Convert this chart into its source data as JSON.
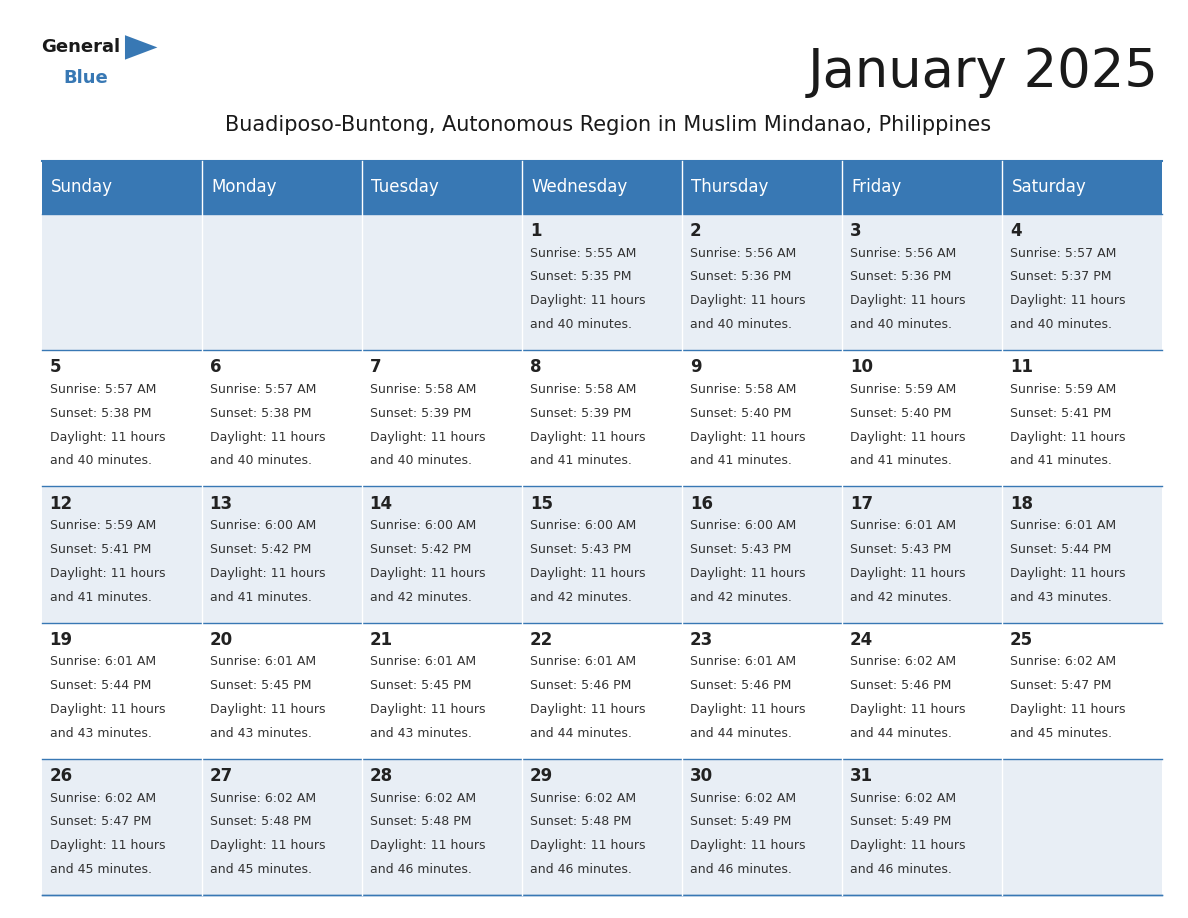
{
  "title": "January 2025",
  "subtitle": "Buadiposo-Buntong, Autonomous Region in Muslim Mindanao, Philippines",
  "days_of_week": [
    "Sunday",
    "Monday",
    "Tuesday",
    "Wednesday",
    "Thursday",
    "Friday",
    "Saturday"
  ],
  "header_bg": "#3878b4",
  "header_text": "#ffffff",
  "cell_bg_light": "#e8eef5",
  "cell_bg_white": "#ffffff",
  "border_color": "#3878b4",
  "day_num_color": "#222222",
  "info_text_color": "#333333",
  "calendar": [
    [
      {
        "day": null,
        "sunrise": null,
        "sunset": null,
        "daylight": null
      },
      {
        "day": null,
        "sunrise": null,
        "sunset": null,
        "daylight": null
      },
      {
        "day": null,
        "sunrise": null,
        "sunset": null,
        "daylight": null
      },
      {
        "day": 1,
        "sunrise": "5:55 AM",
        "sunset": "5:35 PM",
        "daylight": "11 hours and 40 minutes."
      },
      {
        "day": 2,
        "sunrise": "5:56 AM",
        "sunset": "5:36 PM",
        "daylight": "11 hours and 40 minutes."
      },
      {
        "day": 3,
        "sunrise": "5:56 AM",
        "sunset": "5:36 PM",
        "daylight": "11 hours and 40 minutes."
      },
      {
        "day": 4,
        "sunrise": "5:57 AM",
        "sunset": "5:37 PM",
        "daylight": "11 hours and 40 minutes."
      }
    ],
    [
      {
        "day": 5,
        "sunrise": "5:57 AM",
        "sunset": "5:38 PM",
        "daylight": "11 hours and 40 minutes."
      },
      {
        "day": 6,
        "sunrise": "5:57 AM",
        "sunset": "5:38 PM",
        "daylight": "11 hours and 40 minutes."
      },
      {
        "day": 7,
        "sunrise": "5:58 AM",
        "sunset": "5:39 PM",
        "daylight": "11 hours and 40 minutes."
      },
      {
        "day": 8,
        "sunrise": "5:58 AM",
        "sunset": "5:39 PM",
        "daylight": "11 hours and 41 minutes."
      },
      {
        "day": 9,
        "sunrise": "5:58 AM",
        "sunset": "5:40 PM",
        "daylight": "11 hours and 41 minutes."
      },
      {
        "day": 10,
        "sunrise": "5:59 AM",
        "sunset": "5:40 PM",
        "daylight": "11 hours and 41 minutes."
      },
      {
        "day": 11,
        "sunrise": "5:59 AM",
        "sunset": "5:41 PM",
        "daylight": "11 hours and 41 minutes."
      }
    ],
    [
      {
        "day": 12,
        "sunrise": "5:59 AM",
        "sunset": "5:41 PM",
        "daylight": "11 hours and 41 minutes."
      },
      {
        "day": 13,
        "sunrise": "6:00 AM",
        "sunset": "5:42 PM",
        "daylight": "11 hours and 41 minutes."
      },
      {
        "day": 14,
        "sunrise": "6:00 AM",
        "sunset": "5:42 PM",
        "daylight": "11 hours and 42 minutes."
      },
      {
        "day": 15,
        "sunrise": "6:00 AM",
        "sunset": "5:43 PM",
        "daylight": "11 hours and 42 minutes."
      },
      {
        "day": 16,
        "sunrise": "6:00 AM",
        "sunset": "5:43 PM",
        "daylight": "11 hours and 42 minutes."
      },
      {
        "day": 17,
        "sunrise": "6:01 AM",
        "sunset": "5:43 PM",
        "daylight": "11 hours and 42 minutes."
      },
      {
        "day": 18,
        "sunrise": "6:01 AM",
        "sunset": "5:44 PM",
        "daylight": "11 hours and 43 minutes."
      }
    ],
    [
      {
        "day": 19,
        "sunrise": "6:01 AM",
        "sunset": "5:44 PM",
        "daylight": "11 hours and 43 minutes."
      },
      {
        "day": 20,
        "sunrise": "6:01 AM",
        "sunset": "5:45 PM",
        "daylight": "11 hours and 43 minutes."
      },
      {
        "day": 21,
        "sunrise": "6:01 AM",
        "sunset": "5:45 PM",
        "daylight": "11 hours and 43 minutes."
      },
      {
        "day": 22,
        "sunrise": "6:01 AM",
        "sunset": "5:46 PM",
        "daylight": "11 hours and 44 minutes."
      },
      {
        "day": 23,
        "sunrise": "6:01 AM",
        "sunset": "5:46 PM",
        "daylight": "11 hours and 44 minutes."
      },
      {
        "day": 24,
        "sunrise": "6:02 AM",
        "sunset": "5:46 PM",
        "daylight": "11 hours and 44 minutes."
      },
      {
        "day": 25,
        "sunrise": "6:02 AM",
        "sunset": "5:47 PM",
        "daylight": "11 hours and 45 minutes."
      }
    ],
    [
      {
        "day": 26,
        "sunrise": "6:02 AM",
        "sunset": "5:47 PM",
        "daylight": "11 hours and 45 minutes."
      },
      {
        "day": 27,
        "sunrise": "6:02 AM",
        "sunset": "5:48 PM",
        "daylight": "11 hours and 45 minutes."
      },
      {
        "day": 28,
        "sunrise": "6:02 AM",
        "sunset": "5:48 PM",
        "daylight": "11 hours and 46 minutes."
      },
      {
        "day": 29,
        "sunrise": "6:02 AM",
        "sunset": "5:48 PM",
        "daylight": "11 hours and 46 minutes."
      },
      {
        "day": 30,
        "sunrise": "6:02 AM",
        "sunset": "5:49 PM",
        "daylight": "11 hours and 46 minutes."
      },
      {
        "day": 31,
        "sunrise": "6:02 AM",
        "sunset": "5:49 PM",
        "daylight": "11 hours and 46 minutes."
      },
      {
        "day": null,
        "sunrise": null,
        "sunset": null,
        "daylight": null
      }
    ]
  ],
  "title_fontsize": 38,
  "subtitle_fontsize": 15,
  "header_fontsize": 12,
  "day_num_fontsize": 12,
  "info_fontsize": 9,
  "logo_color_general": "#1a1a1a",
  "logo_color_blue": "#3878b4",
  "logo_triangle_color": "#3878b4"
}
